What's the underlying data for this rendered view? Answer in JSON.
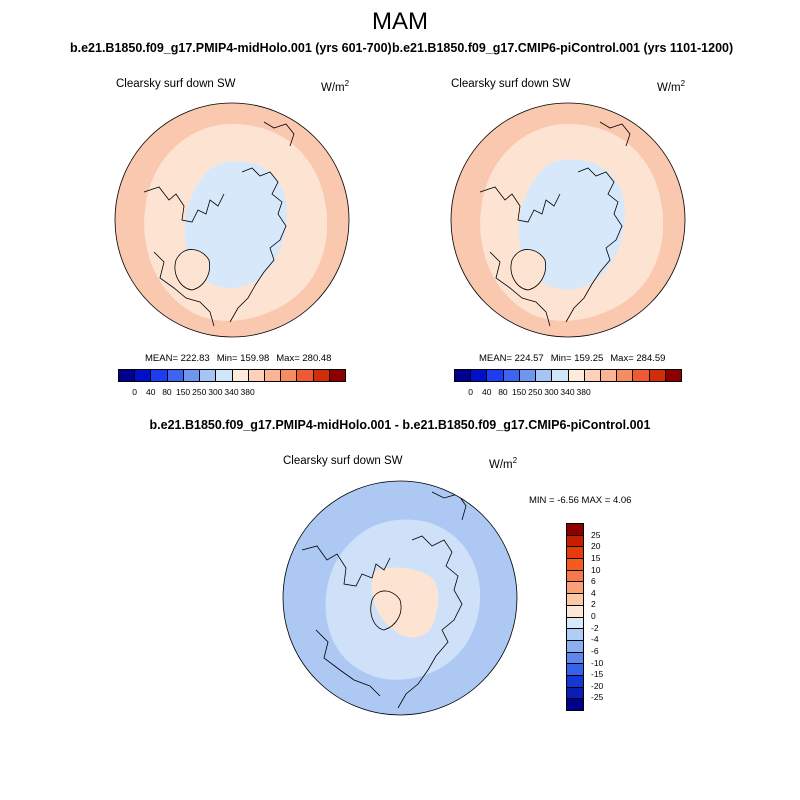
{
  "figure": {
    "season_title": "MAM",
    "difference_title": "b.e21.B1850.f09_g17.PMIP4-midHolo.001 - b.e21.B1850.f09_g17.CMIP6-piControl.001"
  },
  "panels": [
    {
      "case_title": "b.e21.B1850.f09_g17.PMIP4-midHolo.001 (yrs 601-700)",
      "variable_label": "Clearsky surf down SW",
      "units_base": "W/m",
      "units_exp": "2",
      "mean_text": "MEAN= 222.83",
      "min_text": "Min= 159.98",
      "max_text": "Max= 280.48"
    },
    {
      "case_title": "b.e21.B1850.f09_g17.CMIP6-piControl.001 (yrs 1101-1200)",
      "variable_label": "Clearsky surf down SW",
      "units_base": "W/m",
      "units_exp": "2",
      "mean_text": "MEAN= 224.57",
      "min_text": "Min= 159.25",
      "max_text": "Max= 284.59"
    }
  ],
  "difference_panel": {
    "variable_label": "Clearsky surf down SW",
    "units_base": "W/m",
    "units_exp": "2",
    "minmax_text": "MIN =  -6.56 MAX =   4.06"
  },
  "abs_colorbar": {
    "ticks": [
      "0",
      "40",
      "80",
      "150",
      "250",
      "300",
      "340",
      "380"
    ],
    "colors": [
      "#00008c",
      "#0010c8",
      "#1e3cf0",
      "#3c64f0",
      "#6e96f0",
      "#a5c3f5",
      "#d2e6fa",
      "#fdebdc",
      "#fbd2b9",
      "#f9b496",
      "#f58c64",
      "#f05a32",
      "#d22d0a",
      "#8c0000"
    ]
  },
  "diff_colorbar": {
    "ticks": [
      "25",
      "20",
      "15",
      "10",
      "6",
      "4",
      "2",
      "0",
      "-2",
      "-4",
      "-6",
      "-10",
      "-15",
      "-20",
      "-25"
    ],
    "colors": [
      "#8c0000",
      "#c81e00",
      "#e63c0a",
      "#f55a1e",
      "#f7784a",
      "#f9a078",
      "#fbc8a8",
      "#fde8d8",
      "#d8eafa",
      "#b0cdf5",
      "#8aaef2",
      "#5c87ef",
      "#3463ea",
      "#1438d8",
      "#0a1eb4",
      "#00008c"
    ]
  },
  "map_colors": {
    "outer_band": "#f9c8ae",
    "mid_band": "#fde4d2",
    "polar_cap": "#d6e8fa",
    "greenland": "#fde4d2",
    "diff_outer": "#adc8f3",
    "diff_mid": "#cfe1f9",
    "diff_center": "#fde4d2",
    "coastline": "#000000"
  }
}
